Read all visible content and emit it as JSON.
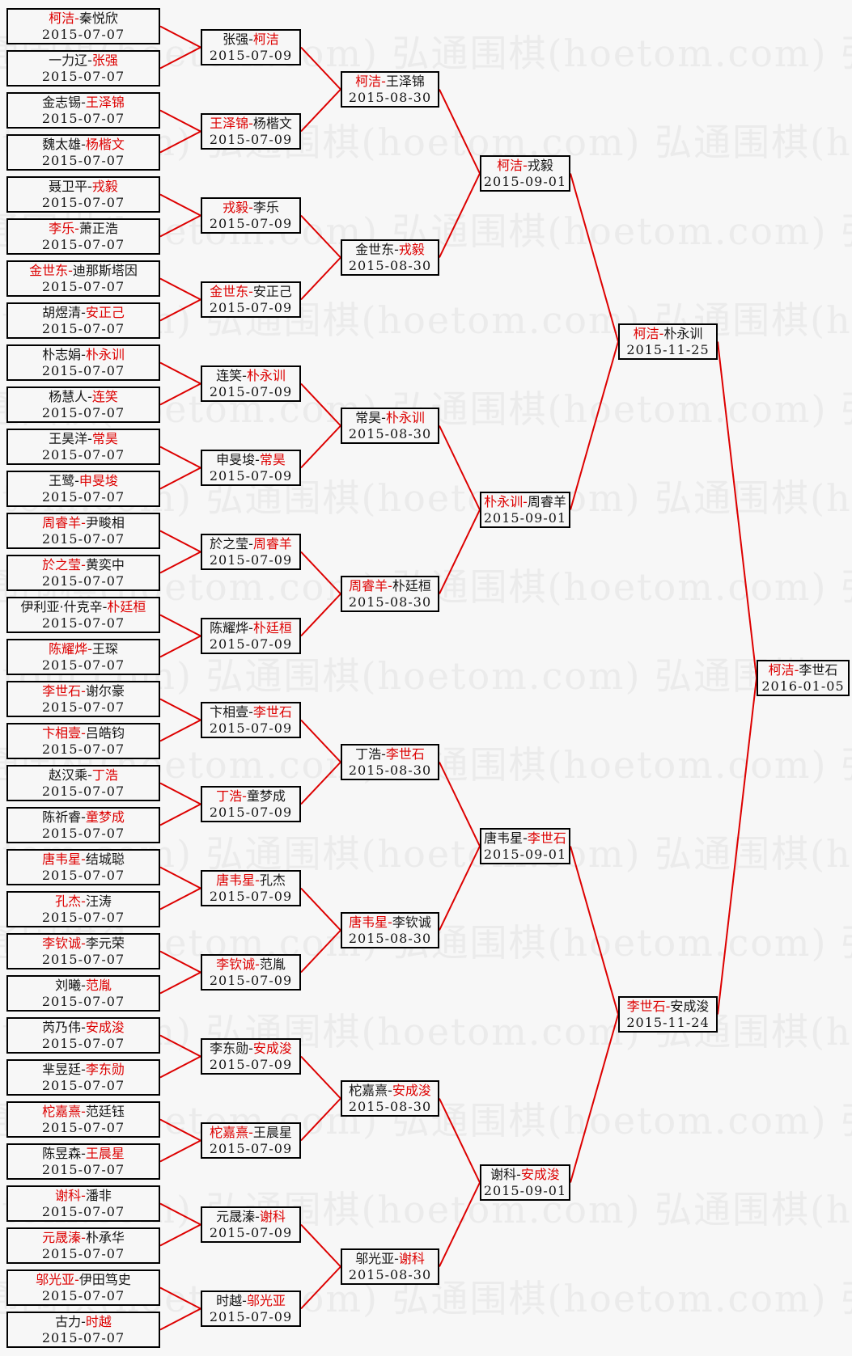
{
  "page": {
    "background": "#f7f7f7"
  },
  "watermark": {
    "text": "弘通围棋(hoetom.com)",
    "color": "#ebebeb"
  },
  "colors": {
    "winner": "#dd0000",
    "line": "#dd0000",
    "text": "#141414",
    "box_border": "#000000"
  },
  "bracket": {
    "separator": "-",
    "rounds": [
      {
        "matches": [
          {
            "p1": "柯洁",
            "p2": "秦悦欣",
            "winner": 1,
            "date": "2015-07-07"
          },
          {
            "p1": "一力辽",
            "p2": "张强",
            "winner": 2,
            "date": "2015-07-07"
          },
          {
            "p1": "金志锡",
            "p2": "王泽锦",
            "winner": 2,
            "date": "2015-07-07"
          },
          {
            "p1": "魏太雄",
            "p2": "杨楷文",
            "winner": 2,
            "date": "2015-07-07"
          },
          {
            "p1": "聂卫平",
            "p2": "戎毅",
            "winner": 2,
            "date": "2015-07-07"
          },
          {
            "p1": "李乐",
            "p2": "萧正浩",
            "winner": 1,
            "date": "2015-07-07"
          },
          {
            "p1": "金世东",
            "p2": "迪那斯塔因",
            "winner": 1,
            "date": "2015-07-07"
          },
          {
            "p1": "胡煜清",
            "p2": "安正己",
            "winner": 2,
            "date": "2015-07-07"
          },
          {
            "p1": "朴志娟",
            "p2": "朴永训",
            "winner": 2,
            "date": "2015-07-07"
          },
          {
            "p1": "杨慧人",
            "p2": "连笑",
            "winner": 2,
            "date": "2015-07-07"
          },
          {
            "p1": "王昊洋",
            "p2": "常昊",
            "winner": 2,
            "date": "2015-07-07"
          },
          {
            "p1": "王鹭",
            "p2": "申旻埈",
            "winner": 2,
            "date": "2015-07-07"
          },
          {
            "p1": "周睿羊",
            "p2": "尹畯相",
            "winner": 1,
            "date": "2015-07-07"
          },
          {
            "p1": "於之莹",
            "p2": "黄奕中",
            "winner": 1,
            "date": "2015-07-07"
          },
          {
            "p1": "伊利亚·什克辛",
            "p2": "朴廷桓",
            "winner": 2,
            "date": "2015-07-07"
          },
          {
            "p1": "陈耀烨",
            "p2": "王琛",
            "winner": 1,
            "date": "2015-07-07"
          },
          {
            "p1": "李世石",
            "p2": "谢尔豪",
            "winner": 1,
            "date": "2015-07-07"
          },
          {
            "p1": "卞相壹",
            "p2": "吕皓钧",
            "winner": 1,
            "date": "2015-07-07"
          },
          {
            "p1": "赵汉乘",
            "p2": "丁浩",
            "winner": 2,
            "date": "2015-07-07"
          },
          {
            "p1": "陈祈睿",
            "p2": "童梦成",
            "winner": 2,
            "date": "2015-07-07"
          },
          {
            "p1": "唐韦星",
            "p2": "结城聪",
            "winner": 1,
            "date": "2015-07-07"
          },
          {
            "p1": "孔杰",
            "p2": "汪涛",
            "winner": 1,
            "date": "2015-07-07"
          },
          {
            "p1": "李钦诚",
            "p2": "李元荣",
            "winner": 1,
            "date": "2015-07-07"
          },
          {
            "p1": "刘曦",
            "p2": "范胤",
            "winner": 2,
            "date": "2015-07-07"
          },
          {
            "p1": "芮乃伟",
            "p2": "安成浚",
            "winner": 2,
            "date": "2015-07-07"
          },
          {
            "p1": "芈昱廷",
            "p2": "李东勋",
            "winner": 2,
            "date": "2015-07-07"
          },
          {
            "p1": "柁嘉熹",
            "p2": "范廷钰",
            "winner": 1,
            "date": "2015-07-07"
          },
          {
            "p1": "陈昱森",
            "p2": "王晨星",
            "winner": 2,
            "date": "2015-07-07"
          },
          {
            "p1": "谢科",
            "p2": "潘非",
            "winner": 1,
            "date": "2015-07-07"
          },
          {
            "p1": "元晟溱",
            "p2": "朴承华",
            "winner": 1,
            "date": "2015-07-07"
          },
          {
            "p1": "邬光亚",
            "p2": "伊田笃史",
            "winner": 1,
            "date": "2015-07-07"
          },
          {
            "p1": "古力",
            "p2": "时越",
            "winner": 2,
            "date": "2015-07-07"
          }
        ]
      },
      {
        "matches": [
          {
            "p1": "张强",
            "p2": "柯洁",
            "winner": 2,
            "date": "2015-07-09"
          },
          {
            "p1": "王泽锦",
            "p2": "杨楷文",
            "winner": 1,
            "date": "2015-07-09"
          },
          {
            "p1": "戎毅",
            "p2": "李乐",
            "winner": 1,
            "date": "2015-07-09"
          },
          {
            "p1": "金世东",
            "p2": "安正己",
            "winner": 1,
            "date": "2015-07-09"
          },
          {
            "p1": "连笑",
            "p2": "朴永训",
            "winner": 2,
            "date": "2015-07-09"
          },
          {
            "p1": "申旻埈",
            "p2": "常昊",
            "winner": 2,
            "date": "2015-07-09"
          },
          {
            "p1": "於之莹",
            "p2": "周睿羊",
            "winner": 2,
            "date": "2015-07-09"
          },
          {
            "p1": "陈耀烨",
            "p2": "朴廷桓",
            "winner": 2,
            "date": "2015-07-09"
          },
          {
            "p1": "卞相壹",
            "p2": "李世石",
            "winner": 2,
            "date": "2015-07-09"
          },
          {
            "p1": "丁浩",
            "p2": "童梦成",
            "winner": 1,
            "date": "2015-07-09"
          },
          {
            "p1": "唐韦星",
            "p2": "孔杰",
            "winner": 1,
            "date": "2015-07-09"
          },
          {
            "p1": "李钦诚",
            "p2": "范胤",
            "winner": 1,
            "date": "2015-07-09"
          },
          {
            "p1": "李东勋",
            "p2": "安成浚",
            "winner": 2,
            "date": "2015-07-09"
          },
          {
            "p1": "柁嘉熹",
            "p2": "王晨星",
            "winner": 1,
            "date": "2015-07-09"
          },
          {
            "p1": "元晟溱",
            "p2": "谢科",
            "winner": 2,
            "date": "2015-07-09"
          },
          {
            "p1": "时越",
            "p2": "邬光亚",
            "winner": 2,
            "date": "2015-07-09"
          }
        ]
      },
      {
        "matches": [
          {
            "p1": "柯洁",
            "p2": "王泽锦",
            "winner": 1,
            "date": "2015-08-30"
          },
          {
            "p1": "金世东",
            "p2": "戎毅",
            "winner": 2,
            "date": "2015-08-30"
          },
          {
            "p1": "常昊",
            "p2": "朴永训",
            "winner": 2,
            "date": "2015-08-30"
          },
          {
            "p1": "周睿羊",
            "p2": "朴廷桓",
            "winner": 1,
            "date": "2015-08-30"
          },
          {
            "p1": "丁浩",
            "p2": "李世石",
            "winner": 2,
            "date": "2015-08-30"
          },
          {
            "p1": "唐韦星",
            "p2": "李钦诚",
            "winner": 1,
            "date": "2015-08-30"
          },
          {
            "p1": "柁嘉熹",
            "p2": "安成浚",
            "winner": 2,
            "date": "2015-08-30"
          },
          {
            "p1": "邬光亚",
            "p2": "谢科",
            "winner": 2,
            "date": "2015-08-30"
          }
        ]
      },
      {
        "matches": [
          {
            "p1": "柯洁",
            "p2": "戎毅",
            "winner": 1,
            "date": "2015-09-01"
          },
          {
            "p1": "朴永训",
            "p2": "周睿羊",
            "winner": 1,
            "date": "2015-09-01"
          },
          {
            "p1": "唐韦星",
            "p2": "李世石",
            "winner": 2,
            "date": "2015-09-01"
          },
          {
            "p1": "谢科",
            "p2": "安成浚",
            "winner": 2,
            "date": "2015-09-01"
          }
        ]
      },
      {
        "matches": [
          {
            "p1": "柯洁",
            "p2": "朴永训",
            "winner": 1,
            "date": "2015-11-25"
          },
          {
            "p1": "李世石",
            "p2": "安成浚",
            "winner": 1,
            "date": "2015-11-24"
          }
        ]
      },
      {
        "matches": [
          {
            "p1": "柯洁",
            "p2": "李世石",
            "winner": 1,
            "date": "2016-01-05"
          }
        ]
      }
    ]
  }
}
